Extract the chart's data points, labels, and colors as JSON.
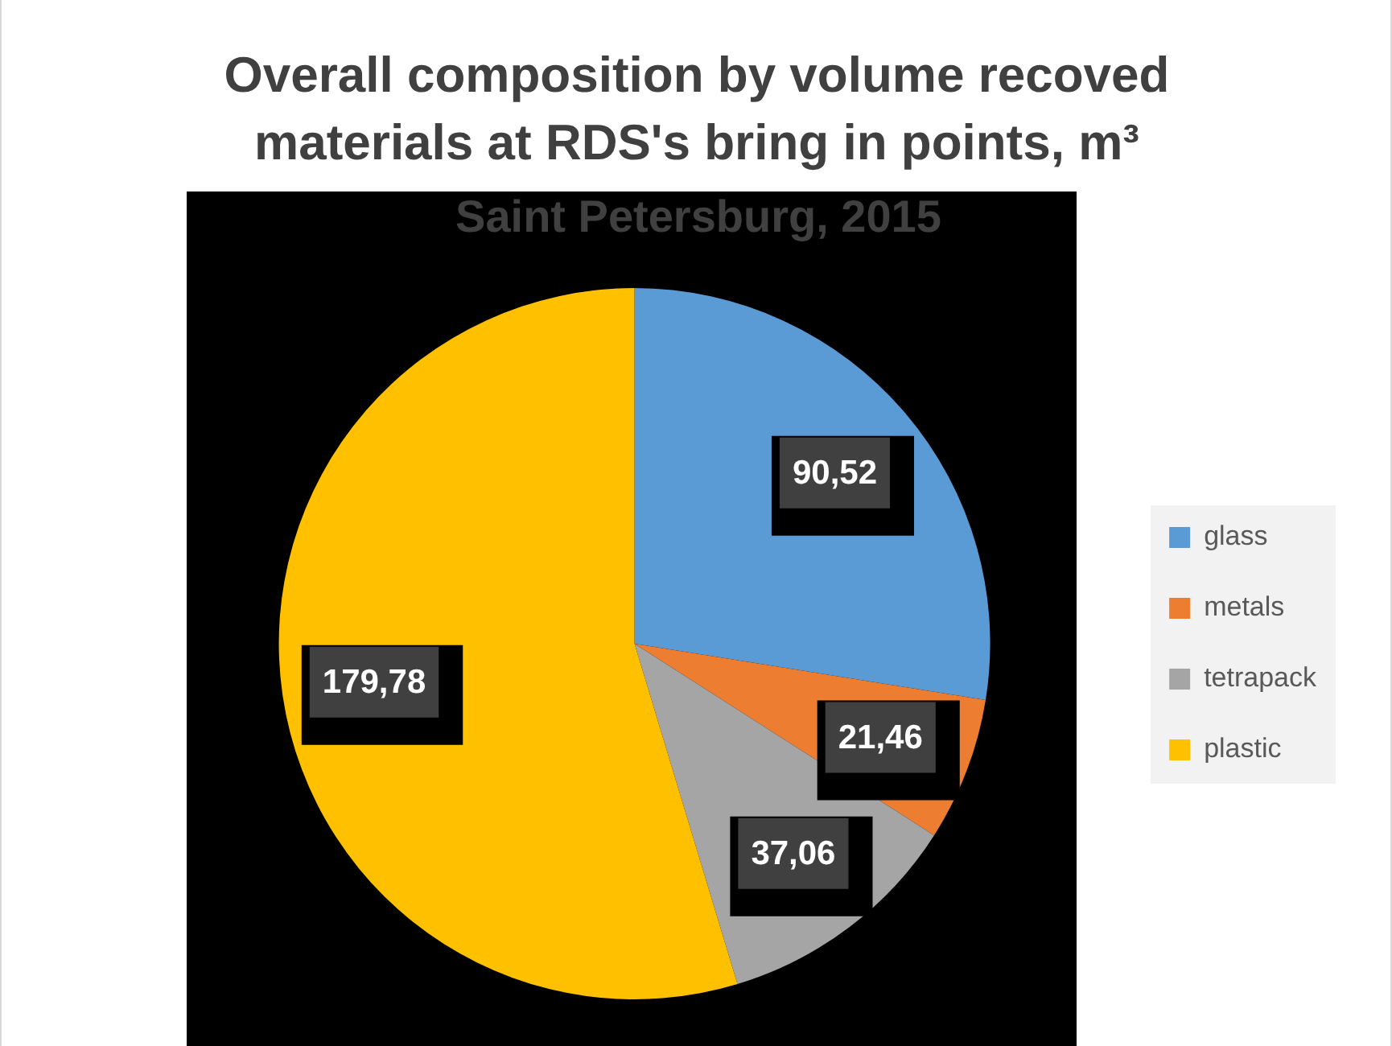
{
  "chart_data": {
    "type": "pie",
    "title": "Overall composition by volume recoved materials at RDS's bring in points, m³",
    "subtitle": "Saint Petersburg, 2015",
    "categories": [
      "glass",
      "metals",
      "tetrapack",
      "plastic"
    ],
    "values": [
      90.52,
      21.46,
      37.06,
      179.78
    ],
    "colors": [
      "#5b9bd5",
      "#ed7d31",
      "#a5a5a5",
      "#ffc000"
    ],
    "value_labels": [
      "90,52",
      "21,46",
      "37,06",
      "179,78"
    ],
    "legend": "right"
  }
}
